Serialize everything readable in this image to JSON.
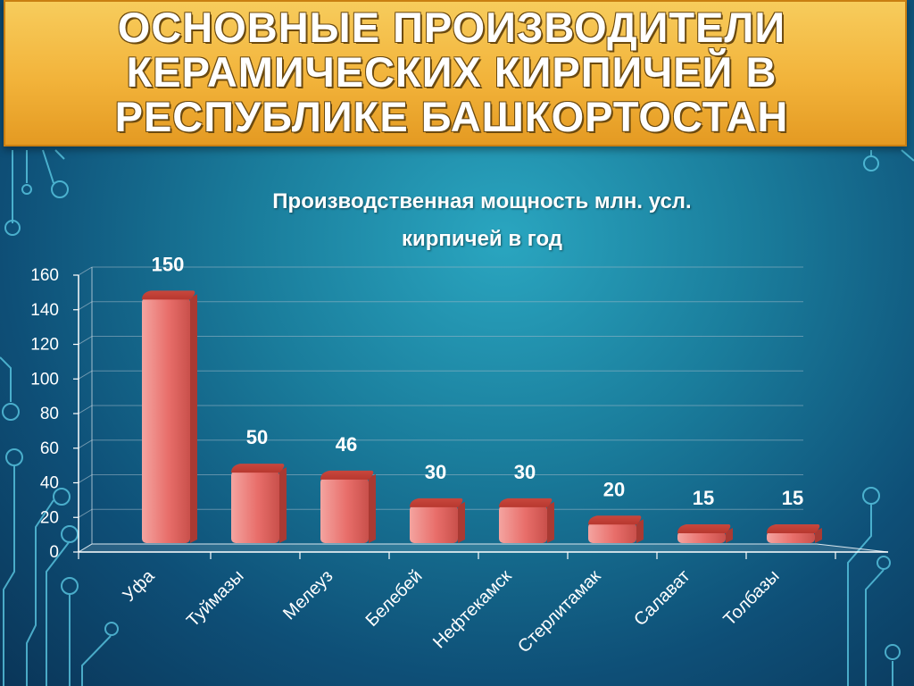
{
  "slide": {
    "title": "ОСНОВНЫЕ ПРОИЗВОДИТЕЛИ\nКЕРАМИЧЕСКИХ КИРПИЧЕЙ В\nРЕСПУБЛИКЕ БАШКОРТОСТАН"
  },
  "colors": {
    "background": "#1a7d9c",
    "banner": "#f2b33a",
    "bar": "#e86e6a",
    "bar_top": "#b8382f"
  },
  "chart_data": {
    "type": "bar",
    "title": "Производственная мощность млн. усл.\nкирпичей в год",
    "categories": [
      "Уфа",
      "Туймазы",
      "Мелеуз",
      "Белебей",
      "Нефтекамск",
      "Стерлитамак",
      "Салават",
      "Толбазы"
    ],
    "values": [
      150,
      50,
      46,
      30,
      30,
      20,
      15,
      15
    ],
    "data_labels": [
      "150",
      "50",
      "46",
      "30",
      "30",
      "20",
      "15",
      "15"
    ],
    "ylim": [
      0,
      160
    ],
    "y_ticks": [
      "0",
      "20",
      "40",
      "60",
      "80",
      "100",
      "120",
      "140",
      "160"
    ],
    "grid": true,
    "xlabel": "",
    "ylabel": ""
  }
}
